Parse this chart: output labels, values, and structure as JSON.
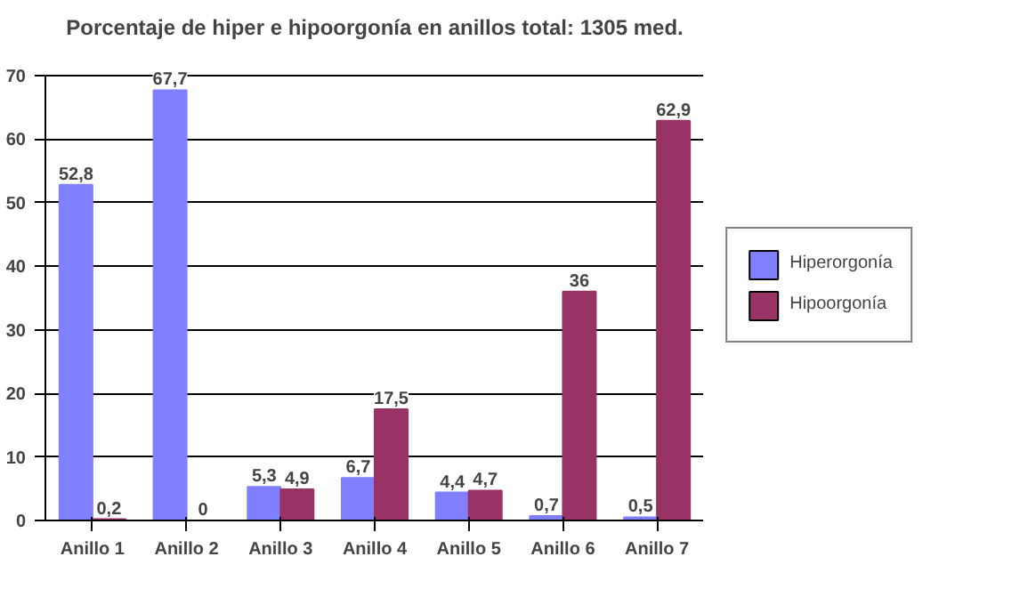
{
  "chart_data": {
    "type": "bar",
    "title": "Porcentaje de hiper e hipoorgonía en anillos total: 1305 med.",
    "categories": [
      "Anillo 1",
      "Anillo 2",
      "Anillo 3",
      "Anillo 4",
      "Anillo 5",
      "Anillo 6",
      "Anillo 7"
    ],
    "series": [
      {
        "name": "Hiperorgonía",
        "color": "#7f7fff",
        "values": [
          52.8,
          67.7,
          5.3,
          6.7,
          4.4,
          0.7,
          0.5
        ],
        "value_labels": [
          "52,8",
          "67,7",
          "5,3",
          "6,7",
          "4,4",
          "0,7",
          "0,5"
        ]
      },
      {
        "name": "Hipoorgonía",
        "color": "#993366",
        "values": [
          0.2,
          0,
          4.9,
          17.5,
          4.7,
          36,
          62.9
        ],
        "value_labels": [
          "0,2",
          "0",
          "4,9",
          "17,5",
          "4,7",
          "36",
          "62,9"
        ]
      }
    ],
    "ylim": [
      0,
      70
    ],
    "yticks": [
      0,
      10,
      20,
      30,
      40,
      50,
      60,
      70
    ],
    "grid": "y",
    "legend": "right"
  }
}
